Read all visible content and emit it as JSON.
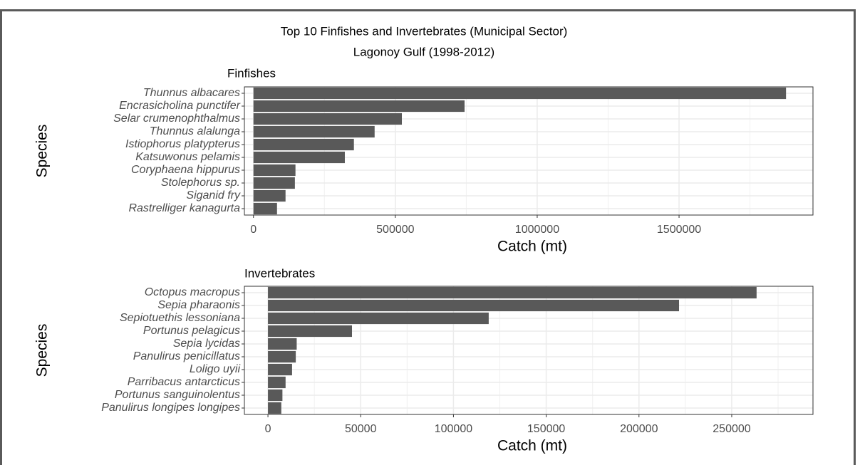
{
  "page": {
    "title": "Top 10 Finfishes and Invertebrates (Municipal Sector)",
    "subtitle": "Lagonoy Gulf (1998-2012)"
  },
  "chart_data": [
    {
      "type": "barh",
      "title": "Finfishes",
      "x_label": "Catch (mt)",
      "y_label": "Species",
      "categories": [
        "Thunnus albacares",
        "Encrasicholina punctifer",
        "Selar crumenophthalmus",
        "Thunnus alalunga",
        "Istiophorus platypterus",
        "Katsuwonus pelamis",
        "Coryphaena hippurus",
        "Stolephorus sp.",
        "Siganid fry",
        "Rastrelliger kanagurta"
      ],
      "values": [
        1877000,
        744000,
        523000,
        427000,
        354000,
        322000,
        148000,
        146000,
        113000,
        83000
      ],
      "color": "#595959",
      "xlim": [
        -32000,
        1972000
      ],
      "xticks": [
        0,
        500000,
        1000000,
        1500000
      ],
      "xminor": [
        250000,
        750000,
        1250000,
        1750000
      ],
      "grid": true
    },
    {
      "type": "barh",
      "title": "Invertebrates",
      "x_label": "Catch (mt)",
      "y_label": "Species",
      "categories": [
        "Octopus macropus",
        "Sepia pharaonis",
        "Sepiotuethis lessoniana",
        "Portunus pelagicus",
        "Sepia lycidas",
        "Panulirus penicillatus",
        "Loligo uyii",
        "Parribacus antarcticus",
        "Portunus sanguinolentus",
        "Panulirus longipes longipes"
      ],
      "values": [
        263400,
        221600,
        119000,
        45300,
        15500,
        15000,
        13000,
        9500,
        7800,
        7200
      ],
      "color": "#595959",
      "xlim": [
        -12700,
        293800
      ],
      "xticks": [
        0,
        50000,
        100000,
        150000,
        200000,
        250000
      ],
      "xminor": [
        25000,
        75000,
        125000,
        175000,
        225000,
        275000
      ],
      "grid": true
    }
  ]
}
